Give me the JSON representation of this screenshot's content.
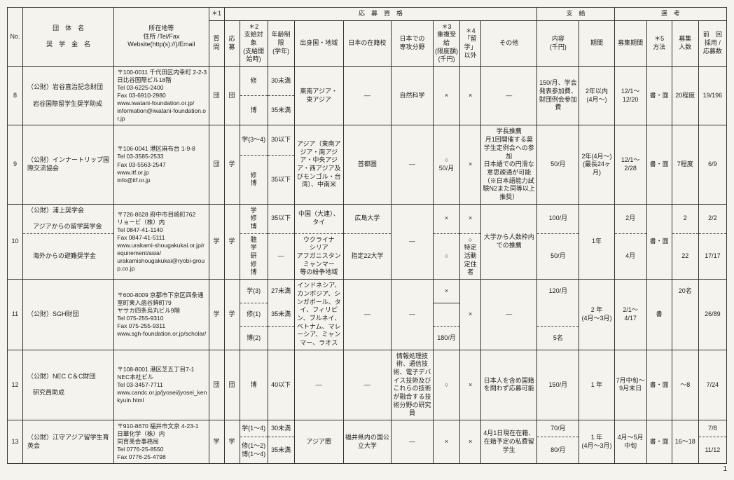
{
  "pageNumber": "1",
  "headers": {
    "no": "No.",
    "org": "団　体　名\n\n奨　学　金　名",
    "addr": "所在地等\n住所 /Tel/Fax\nWebsite(http(s)://)/Email",
    "star1": "＊1",
    "qualGroup": "応　募　資　格",
    "payGroup": "支　給",
    "selGroup": "選　考",
    "q": "質問",
    "bo": "応募",
    "tgt": "＊2\n支給対象\n(支給開始時)",
    "age": "年齢制限\n(学年)",
    "reg": "出身国・地域",
    "sch": "日本の在籍校",
    "fld": "日本での\n専攻分野",
    "dup": "＊3\n重複受給\n(限度額)\n(千円)",
    "ryu": "＊4\n「留学」\n以外",
    "oth": "その他",
    "amt": "内容\n(千円)",
    "per": "期間",
    "app": "募集期間",
    "mtd": "＊5\n方法",
    "num": "募集\n人数",
    "prev": "前　回\n採用 /\n応募数"
  },
  "rows": [
    {
      "no": "8",
      "org1": "（公財）岩谷直治記念財団",
      "org2": "岩谷国際留学生奨学助成",
      "addr": "〒100-0011 千代田区内幸町 2-2-3\n日比谷国際ビル18階\nTel 03-6225-2400\nFax 03-6910-2980\nwww.iwatani-foundation.or.jp/\ninformation@iwatani-foundation.or.jp",
      "q": "団",
      "bo": "団",
      "sub": [
        {
          "tgt": "修",
          "age": "30未満"
        },
        {
          "tgt": "博",
          "age": "35未満"
        }
      ],
      "reg": "東南アジア・\n東アジア",
      "sch": "—",
      "fld": "自然科学",
      "dup": "×",
      "ryu": "×",
      "oth": "—",
      "amt": "150/月、学会発表参加費、\n財団例会参加費",
      "per": "2年以内\n(4月〜)",
      "app": "12/1〜\n12/20",
      "mtd": "書・面",
      "num": "20程度",
      "prev": "19/196"
    },
    {
      "no": "9",
      "org1": "（公財）インナートリップ国際交流協会",
      "org2": "",
      "addr": "〒106-0041 港区麻布台 1-9-8\nTel 03-3585-2533\nFax 03-5563-2547\nwww.itf.or.jp\ninfo@itf.or.jp",
      "q": "団",
      "bo": "学",
      "sub": [
        {
          "tgt": "学(3〜4)",
          "age": "30以下"
        },
        {
          "tgt": "修\n博",
          "age": "35以下"
        }
      ],
      "reg": "アジア（東南アジア・南アジア・中央アジア・西アジア及びモンゴル・台湾）、中南米",
      "sch": "首都圏",
      "fld": "—",
      "dup": "○\n50/月",
      "ryu": "×",
      "oth": "学長推薦\n月1回開催する奨学生定例会への参加\n日本語での円滑な意思疎通が可能（※日本語能力試験N2また同等以上推奨）",
      "amt": "50/月",
      "per": "2年(4月〜)\n(最長24ヶ月)",
      "app": "12/1〜\n2/28",
      "mtd": "書・面",
      "num": "7程度",
      "prev": "6/9"
    },
    {
      "no": "10",
      "org1": "（公財）浦上奨学会",
      "addr": "〒726-8628 府中市目崎町762\nリョービ（株）内\nTel 0847-41-1140\nFax 0847-41-5111\nwww.urakami-shougakukai.or.jp/requirement/asia/\nurakamishougakukai@ryobi-group.co.jp",
      "q": "学",
      "bo": "学",
      "scholarships": [
        {
          "name": "アジアからの留学奨学金",
          "tgt": "学\n修\n博",
          "age": "35以下",
          "reg": "中国（大連）、\nタイ",
          "sch": "広島大学",
          "dup": "×",
          "ryu": "×",
          "amt": "100/月",
          "app": "2月",
          "num": "2",
          "prev": "2/2"
        },
        {
          "name": "海外からの避難奨学金",
          "tgt": "聴\n学\n研\n修\n博",
          "age": "—",
          "reg": "ウクライナ\nシリア\nアフガニスタン\nミャンマー\n等の紛争地域",
          "sch": "指定22大学",
          "dup": "○",
          "ryu": "○\n特定活動\n定住者",
          "amt": "50/月",
          "app": "4月",
          "num": "22",
          "prev": "17/17"
        }
      ],
      "fld": "—",
      "oth": "大学から人数枠内での推薦",
      "per": "1年",
      "mtd": "書・面"
    },
    {
      "no": "11",
      "org1": "（公財）SGH財団",
      "addr": "〒600-8009 京都市下京区四条通室町東入函谷鉾町79\nヤサカ四条烏丸ビル9階\nTel 075-255-9310\nFax 075-255-9311\nwww.sgh-foundation.or.jp/scholar/",
      "q": "学",
      "bo": "学",
      "sub": [
        {
          "tgt": "学(3)",
          "age": "27未満",
          "amt": "120/月",
          "num": "20名"
        },
        {
          "tgt": "修(1)",
          "age": "35未満",
          "amt": "",
          "num": ""
        },
        {
          "tgt": "博(2)",
          "age": "",
          "amt": "180/月",
          "num": "5名"
        }
      ],
      "reg": "インドネシア、カンボジア、シンガポール、タイ、フィリピン、ブルネイ、ベトナム、マレーシア、ミャンマー、ラオス",
      "sch": "—",
      "fld": "—",
      "dup": "×",
      "ryu": "×",
      "oth": "—",
      "per": "2 年\n(4月〜3月)",
      "app": "2/1〜\n4/17",
      "mtd": "書",
      "prev": "26/89"
    },
    {
      "no": "12",
      "org1": "（公財）NEC C＆C財団",
      "org2": "研究員助成",
      "addr": "〒108-8001 港区芝五丁目7-1\nNEC本社ビル\nTel 03-3457-7711\nwww.candc.or.jp/jyosei/jyosei_kenkyuin.html",
      "q": "団",
      "bo": "団",
      "tgt": "博",
      "age": "40以下",
      "reg": "—",
      "sch": "—",
      "fld": "情報処理技術、通信技術、電子デバイス技術及びこれらの技術が融合する技術分野の研究員",
      "dup": "○",
      "ryu": "×",
      "oth": "日本人を含め国籍を問わず応募可能",
      "amt": "150/月",
      "per": "1 年",
      "app": "7月中旬〜9月末日",
      "mtd": "書・面",
      "num": "〜8",
      "prev": "7/24"
    },
    {
      "no": "13",
      "org1": "（公財）江守アジア留学生育英会",
      "addr": "〒910-8670 福井市文京 4-23-1\n日華化学（株）内\n同育英会事務局\nTel 0776-25-8550\nFax 0776-25-4798",
      "q": "学",
      "bo": "学",
      "sub": [
        {
          "tgt": "学(1〜4)",
          "age": "30未満",
          "amt": "70/月",
          "prev": "7/8"
        },
        {
          "tgt": "修(1〜2)\n博(1〜4)",
          "age": "35未満",
          "amt": "80/月",
          "prev": "11/12"
        }
      ],
      "reg": "アジア圏",
      "sch": "福井県内の国公立大学",
      "fld": "—",
      "dup": "×",
      "ryu": "×",
      "oth": "4月1日現在在籍、在籍予定の私費留学生",
      "per": "1 年\n(4月〜3月)",
      "app": "4月〜5月中旬",
      "mtd": "書・面",
      "num": "16〜18"
    }
  ]
}
